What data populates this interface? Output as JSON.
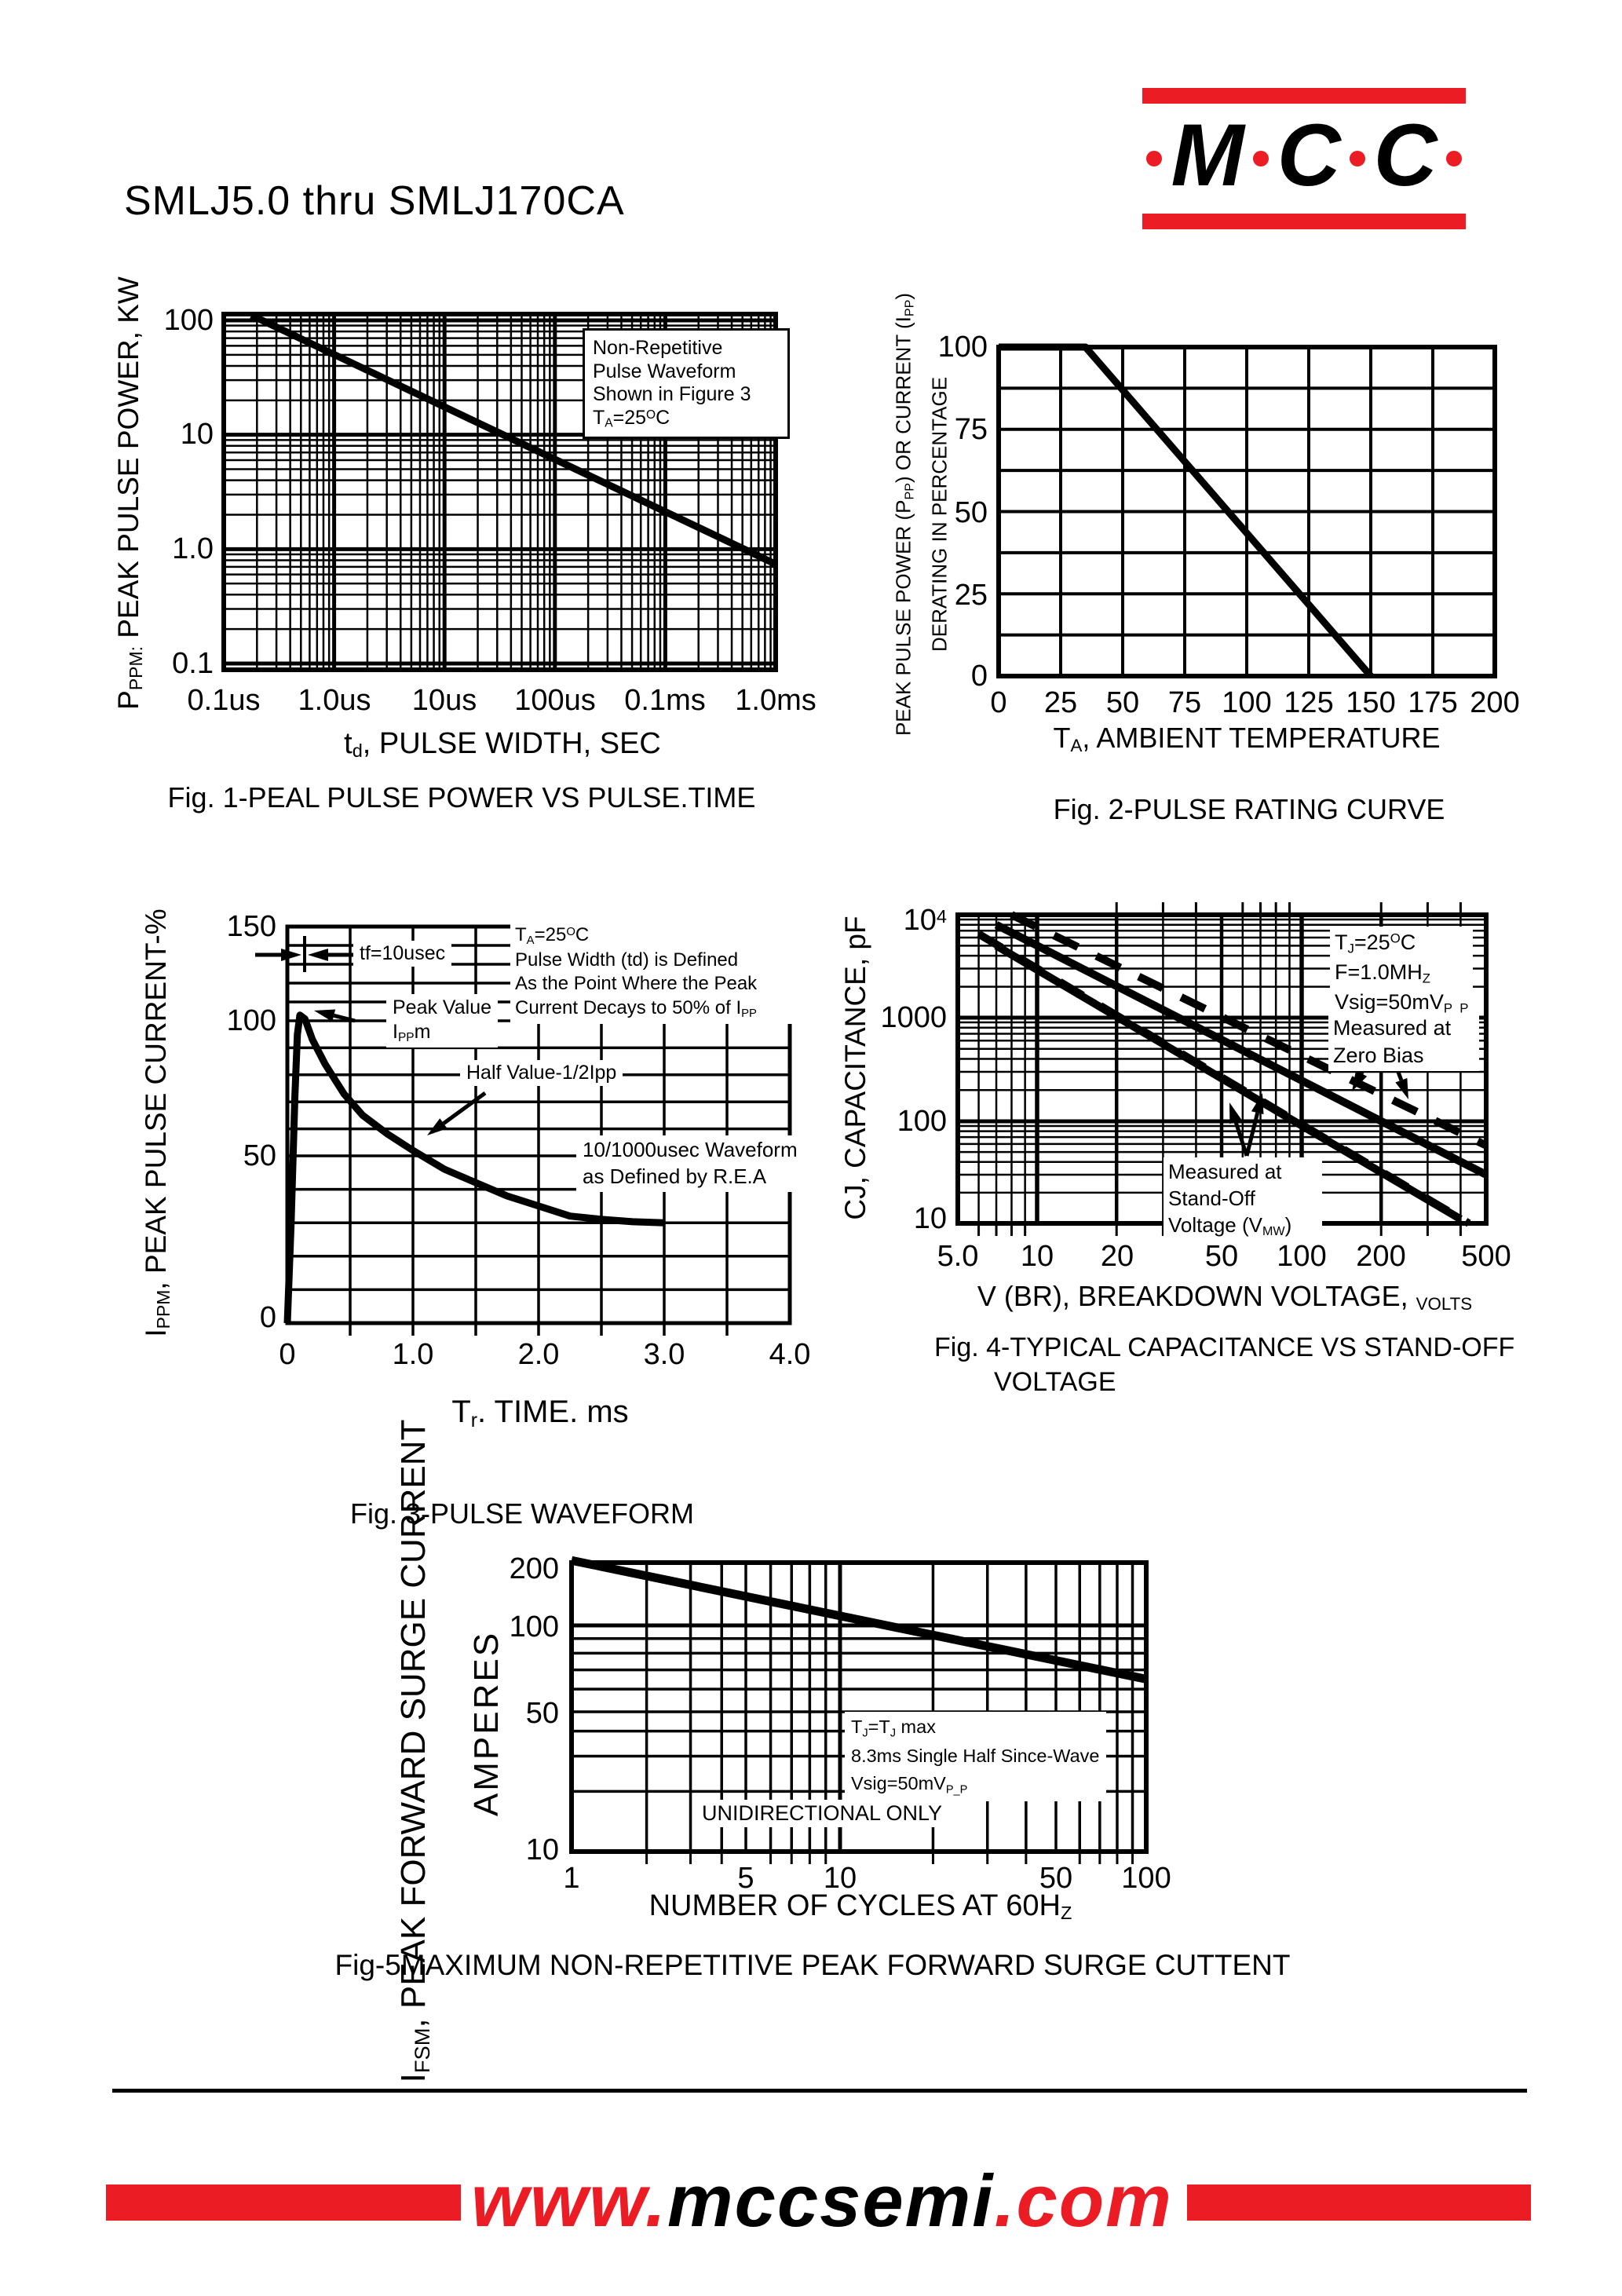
{
  "page": {
    "title": "SMLJ5.0 thru SMLJ170CA"
  },
  "logo": {
    "letters": [
      "M",
      "C",
      "C"
    ],
    "accent_color": "#EC1C24"
  },
  "footer": {
    "url_www": "www.",
    "url_domain": "mccsemi",
    "url_com": ".com"
  },
  "colors": {
    "accent_red": "#EC1C24",
    "ink": "#000000",
    "paper": "#FFFFFF"
  },
  "chart_data": [
    {
      "id": "fig1",
      "type": "line",
      "title": "Fig. 1-PEAL PULSE POWER VS PULSE.TIME",
      "xlabel": "t_{d}, PULSE WIDTH, SEC",
      "ylabel": "P_{PPM:} PEAK PULSE POWER, KW",
      "x_ticks": [
        "0.1us",
        "1.0us",
        "10us",
        "100us",
        "0.1ms",
        "1.0ms"
      ],
      "y_ticks": [
        "100",
        "10",
        "1.0",
        "0.1"
      ],
      "xlim_decades": [
        0,
        5
      ],
      "ylim": [
        0.1,
        115
      ],
      "log_x": true,
      "log_y": true,
      "grid": true,
      "series": [
        {
          "name": "peak-pulse-power",
          "style": "solid",
          "points_decade_kw": [
            [
              0.25,
              111
            ],
            [
              5.0,
              0.74
            ]
          ]
        }
      ],
      "note": [
        "Non-Repetitive",
        "Pulse Waveform",
        "Shown in Figure 3",
        "T_{A}=25^{O}C"
      ]
    },
    {
      "id": "fig2",
      "type": "line",
      "title": "Fig. 2-PULSE RATING CURVE",
      "xlabel": "T_{A}, AMBIENT TEMPERATURE",
      "ylabel_lines": [
        "PEAK PULSE POWER (P_{PP}) OR CURRENT (I_{PP})",
        "DERATING IN PERCENTAGE"
      ],
      "x_ticks": [
        "0",
        "25",
        "50",
        "75",
        "100",
        "125",
        "150",
        "175",
        "200"
      ],
      "y_ticks": [
        "100",
        "75",
        "50",
        "25",
        "0"
      ],
      "xlim": [
        0,
        200
      ],
      "ylim": [
        0,
        100
      ],
      "log_x": false,
      "log_y": false,
      "grid": true,
      "series": [
        {
          "name": "derating-curve",
          "style": "solid",
          "points": [
            [
              0,
              100
            ],
            [
              35,
              100
            ],
            [
              150,
              0
            ]
          ]
        }
      ]
    },
    {
      "id": "fig3",
      "type": "line",
      "title": "Fig. 3-PULSE WAVEFORM",
      "xlabel": "T_{r}. TIME. ms",
      "ylabel": "I_{PPM}, PEAK PULSE CURRENT-%",
      "x_ticks": [
        "0",
        "1.0",
        "2.0",
        "3.0",
        "4.0"
      ],
      "y_ticks": [
        "150",
        "100",
        "50",
        "0"
      ],
      "xlim": [
        0,
        4.0
      ],
      "ylim": [
        0,
        150
      ],
      "log_x": false,
      "log_y": false,
      "grid": true,
      "series": [
        {
          "name": "pulse-waveform",
          "style": "solid",
          "points": [
            [
              0,
              0
            ],
            [
              0.03,
              30
            ],
            [
              0.06,
              72
            ],
            [
              0.08,
              95
            ],
            [
              0.1,
              103
            ],
            [
              0.14,
              101
            ],
            [
              0.2,
              93
            ],
            [
              0.3,
              84
            ],
            [
              0.45,
              73
            ],
            [
              0.6,
              65
            ],
            [
              0.8,
              58
            ],
            [
              1.0,
              52
            ],
            [
              1.25,
              46
            ],
            [
              1.5,
              42
            ],
            [
              1.75,
              38
            ],
            [
              2.0,
              35
            ],
            [
              2.25,
              32
            ],
            [
              2.5,
              31
            ],
            [
              2.75,
              30.3
            ],
            [
              3.0,
              30
            ]
          ]
        }
      ],
      "annotations": {
        "tf": "tf=10usec",
        "peak": [
          "Peak Value",
          "I_{PP}m"
        ],
        "half": "Half Value-1/2Ipp",
        "cond": [
          "T_{A}=25^{O}C",
          "Pulse Width (td) is Defined",
          "As the Point Where the Peak",
          "Current Decays to 50% of I_{PP}"
        ],
        "rea": [
          "10/1000usec Waveform",
          "as Defined by R.E.A"
        ]
      }
    },
    {
      "id": "fig4",
      "type": "line",
      "title_lines": [
        "Fig. 4-TYPICAL CAPACITANCE VS STAND-OFF",
        "VOLTAGE"
      ],
      "xlabel": "V (BR), BREAKDOWN VOLTAGE, _{VOLTS}",
      "ylabel": "CJ, CAPACITANCE, pF",
      "x_ticks": [
        "5.0",
        "10",
        "20",
        "50",
        "100",
        "200",
        "500"
      ],
      "y_ticks": [
        "10^{4}",
        "1000",
        "100",
        "10"
      ],
      "xlim": [
        5,
        500
      ],
      "ylim": [
        10,
        10000
      ],
      "log_x": true,
      "log_y": true,
      "grid": true,
      "series": [
        {
          "name": "capacitance-zero-bias",
          "style": "solid",
          "points": [
            [
              7,
              8000
            ],
            [
              500,
              30
            ]
          ]
        },
        {
          "name": "capacitance-zero-bias-dashed",
          "style": "dashed",
          "points": [
            [
              8,
              10000
            ],
            [
              500,
              58
            ]
          ]
        },
        {
          "name": "capacitance-standoff",
          "style": "solid",
          "points": [
            [
              7,
              5000
            ],
            [
              400,
              11
            ]
          ]
        },
        {
          "name": "capacitance-standoff-dashed",
          "style": "dashed",
          "points": [
            [
              6,
              6500
            ],
            [
              430,
              10
            ]
          ]
        }
      ],
      "annotations": {
        "cond": [
          "T_{J}=25^{O}C",
          "F=1.0MH_{Z}",
          "Vsig=50mV_{P_P}"
        ],
        "zero_bias": [
          "Measured at",
          "Zero Bias"
        ],
        "standoff": [
          "Measured at",
          "Stand-Off",
          "Voltage (V_{MW})"
        ]
      }
    },
    {
      "id": "fig5",
      "type": "line",
      "title": "Fig-5MAXIMUM NON-REPETITIVE PEAK FORWARD SURGE CUTTENT",
      "xlabel": "NUMBER OF CYCLES AT 60H_{Z}",
      "ylabel": "I_{FSM}, PEAK FORWARD SURGE CURRENT",
      "ylabel_inner": "AMPERES",
      "x_ticks": [
        "1",
        "5",
        "10",
        "50",
        "100"
      ],
      "y_ticks": [
        "200",
        "100",
        "50",
        "10"
      ],
      "xlim": [
        1,
        100
      ],
      "ylim": [
        10,
        215
      ],
      "log_x": true,
      "log_y": true,
      "grid": true,
      "series": [
        {
          "name": "surge-current",
          "style": "solid",
          "points": [
            [
              1,
              205
            ],
            [
              100,
              65
            ]
          ]
        }
      ],
      "annotations": {
        "cond": [
          "T_{J}=T_{J} max",
          "8.3ms Single Half Since-Wave",
          "Vsig=50mV_{P_P}"
        ],
        "uni": "UNIDIRECTIONAL ONLY"
      }
    }
  ]
}
